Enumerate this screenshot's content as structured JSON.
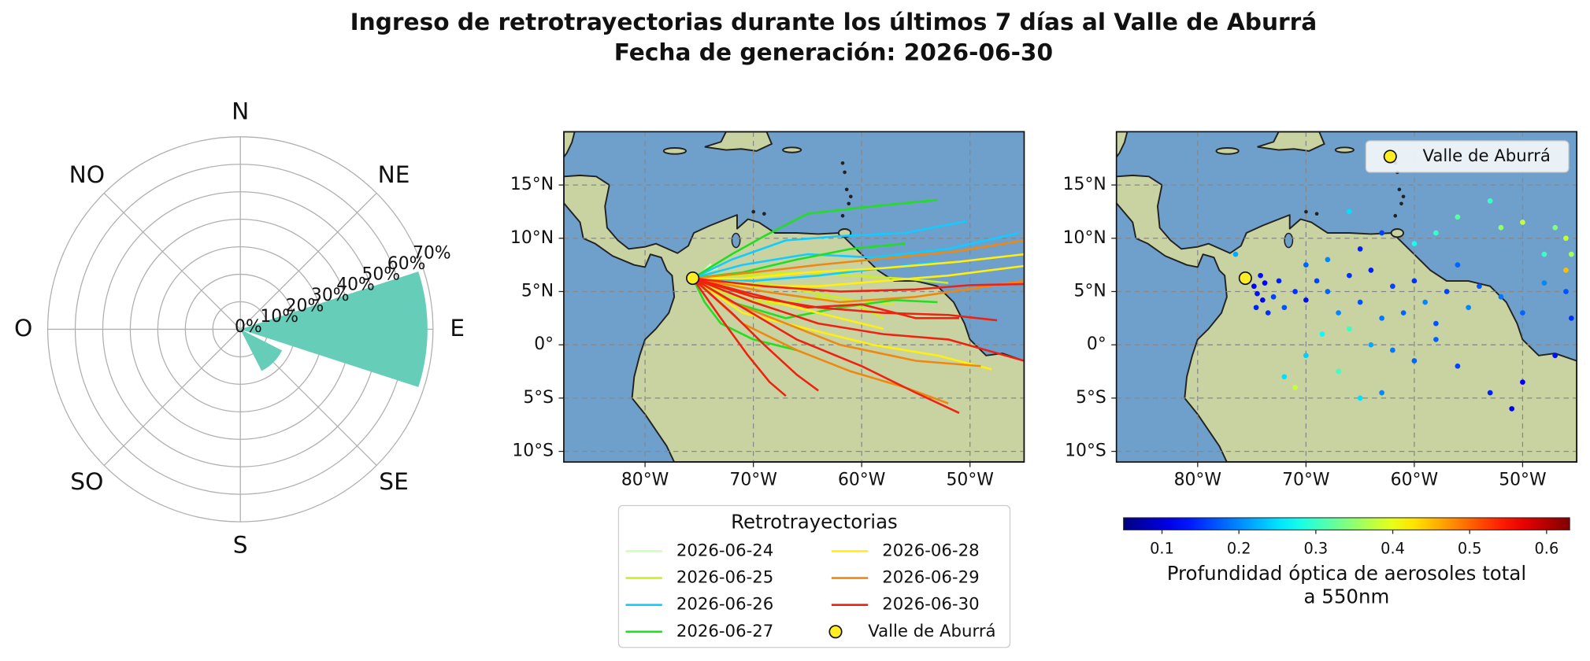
{
  "title": "Ingreso de retrotrayectorias durante los últimos 7 días al Valle de Aburrá",
  "subtitle": "Fecha de generación: 2026-06-30",
  "chart_data": [
    {
      "type": "polar_bar",
      "categories": [
        "N",
        "NE",
        "E",
        "SE",
        "S",
        "SO",
        "O",
        "NO"
      ],
      "values": [
        0,
        0,
        68,
        17,
        0,
        0,
        0,
        0
      ],
      "color": "#66cdb9",
      "bar_width": 0.8,
      "grid": true,
      "ylim": [
        0,
        70
      ],
      "yticks": [
        {
          "value": 0,
          "label": "0%"
        },
        {
          "value": 10,
          "label": "10%"
        },
        {
          "value": 20,
          "label": "20%"
        },
        {
          "value": 30,
          "label": "30%"
        },
        {
          "value": 40,
          "label": "40%"
        },
        {
          "value": 50,
          "label": "50%"
        },
        {
          "value": 60,
          "label": "60%"
        },
        {
          "value": 70,
          "label": "70%"
        }
      ]
    },
    {
      "type": "trajectory_map",
      "xlim": [
        -87.5,
        -45
      ],
      "ylim": [
        -11,
        20
      ],
      "grid": true,
      "xticks": [
        {
          "value": -80,
          "label": "80°W"
        },
        {
          "value": -70,
          "label": "70°W"
        },
        {
          "value": -60,
          "label": "60°W"
        },
        {
          "value": -50,
          "label": "50°W"
        }
      ],
      "yticks": [
        {
          "value": -10,
          "label": "10°S"
        },
        {
          "value": -5,
          "label": "5°S"
        },
        {
          "value": 0,
          "label": "0°"
        },
        {
          "value": 5,
          "label": "5°N"
        },
        {
          "value": 10,
          "label": "10°N"
        },
        {
          "value": 15,
          "label": "15°N"
        }
      ],
      "legend_title": "Retrotrayectorias",
      "legend": "lower center",
      "site": {
        "name": "Valle de Aburrá",
        "x": -75.6,
        "y": 6.25,
        "color": "#ffee22"
      },
      "series": [
        {
          "name": "2026-06-24",
          "color": "#ccffbb",
          "lines": [
            {
              "x": [
                -75.6,
                -74.8,
                -74.0,
                -73.3
              ],
              "y": [
                6.25,
                6.7,
                7.0,
                7.2
              ]
            },
            {
              "x": [
                -75.6,
                -74.6,
                -73.9
              ],
              "y": [
                6.25,
                6.9,
                7.6
              ]
            }
          ]
        },
        {
          "name": "2026-06-25",
          "color": "#ccee22",
          "lines": [
            {
              "x": [
                -75.6,
                -73,
                -69,
                -65,
                -61,
                -57
              ],
              "y": [
                6.25,
                5.5,
                5.8,
                5,
                4.2,
                3.8
              ]
            },
            {
              "x": [
                -75.6,
                -72,
                -68,
                -64,
                -60,
                -58
              ],
              "y": [
                6.25,
                4.5,
                3.8,
                4.5,
                3.5,
                2.5
              ]
            },
            {
              "x": [
                -75.6,
                -71,
                -66,
                -61,
                -56,
                -52
              ],
              "y": [
                6.25,
                6.5,
                6.8,
                6.5,
                6.2,
                5.8
              ]
            }
          ]
        },
        {
          "name": "2026-06-26",
          "color": "#11ccff",
          "lines": [
            {
              "x": [
                -75.6,
                -72,
                -67,
                -62,
                -56,
                -50.3
              ],
              "y": [
                6.25,
                8,
                9.8,
                10.2,
                10.5,
                11.6
              ]
            },
            {
              "x": [
                -75.6,
                -71,
                -65,
                -59,
                -52,
                -45.5
              ],
              "y": [
                6.25,
                7.5,
                8.5,
                8.2,
                9,
                10.5
              ]
            },
            {
              "x": [
                -75.6,
                -70,
                -64,
                -58,
                -53
              ],
              "y": [
                6.25,
                6,
                6.5,
                7.2,
                7.8
              ]
            }
          ]
        },
        {
          "name": "2026-06-27",
          "color": "#22dd22",
          "lines": [
            {
              "x": [
                -75.6,
                -72,
                -69,
                -65,
                -59,
                -53
              ],
              "y": [
                6.25,
                8.5,
                10.2,
                12.3,
                13,
                13.6
              ]
            },
            {
              "x": [
                -75.6,
                -71,
                -66,
                -61,
                -56
              ],
              "y": [
                6.25,
                6.8,
                8,
                9,
                9.5
              ]
            },
            {
              "x": [
                -75.6,
                -72,
                -67,
                -62,
                -57,
                -53
              ],
              "y": [
                6.25,
                4,
                2.5,
                3.5,
                4.2,
                4
              ]
            },
            {
              "x": [
                -75.6,
                -74.5,
                -73,
                -70,
                -66
              ],
              "y": [
                6.25,
                4,
                2,
                0.5,
                -0.5
              ]
            }
          ]
        },
        {
          "name": "2026-06-28",
          "color": "#ffee11",
          "lines": [
            {
              "x": [
                -75.6,
                -71,
                -65,
                -58,
                -51,
                -45
              ],
              "y": [
                6.25,
                6.2,
                6.8,
                7.2,
                7.8,
                8.5
              ]
            },
            {
              "x": [
                -75.6,
                -70,
                -64,
                -58,
                -52,
                -45
              ],
              "y": [
                6.25,
                5.5,
                5.5,
                6,
                6.5,
                7.4
              ]
            },
            {
              "x": [
                -75.6,
                -71,
                -65,
                -59,
                -53,
                -48
              ],
              "y": [
                6.25,
                3,
                1.5,
                0,
                -1,
                -2.3
              ]
            },
            {
              "x": [
                -75.6,
                -70,
                -64,
                -58
              ],
              "y": [
                6.25,
                4.5,
                3,
                1.5
              ]
            }
          ]
        },
        {
          "name": "2026-06-29",
          "color": "#ee8811",
          "lines": [
            {
              "x": [
                -75.6,
                -70,
                -64,
                -57,
                -51,
                -45
              ],
              "y": [
                6.25,
                6.8,
                7.5,
                8.2,
                8.8,
                9.8
              ]
            },
            {
              "x": [
                -75.6,
                -71,
                -66,
                -61,
                -56,
                -52
              ],
              "y": [
                6.25,
                2,
                -0.5,
                -2.5,
                -4,
                -5.5
              ]
            },
            {
              "x": [
                -75.6,
                -72,
                -67,
                -62,
                -55,
                -49
              ],
              "y": [
                6.25,
                4,
                2,
                0,
                -1.5,
                -2
              ]
            },
            {
              "x": [
                -75.6,
                -69,
                -62,
                -55,
                -45
              ],
              "y": [
                6.25,
                5,
                4,
                4.5,
                6
              ]
            }
          ]
        },
        {
          "name": "2026-06-30",
          "color": "#ee2211",
          "lines": [
            {
              "x": [
                -75.6,
                -69,
                -62,
                -55,
                -50,
                -45
              ],
              "y": [
                6.25,
                5.5,
                5,
                5.2,
                5.6,
                5.7
              ]
            },
            {
              "x": [
                -75.6,
                -70,
                -64,
                -58,
                -52,
                -45
              ],
              "y": [
                6.25,
                4,
                2,
                1,
                0.5,
                -1.5
              ]
            },
            {
              "x": [
                -75.6,
                -71,
                -66,
                -60,
                -55,
                -51
              ],
              "y": [
                6.25,
                3.5,
                0.5,
                -2,
                -4.5,
                -6.4
              ]
            },
            {
              "x": [
                -75.6,
                -72,
                -69,
                -66,
                -64
              ],
              "y": [
                6.25,
                3,
                0,
                -2.8,
                -4.3
              ]
            },
            {
              "x": [
                -75.6,
                -73,
                -70.5,
                -68.5,
                -67
              ],
              "y": [
                6.25,
                2.5,
                -1,
                -3.5,
                -4.8
              ]
            },
            {
              "x": [
                -75.6,
                -70,
                -64,
                -58,
                -52,
                -47.5
              ],
              "y": [
                6.25,
                4.5,
                3.5,
                3,
                2.8,
                2.3
              ]
            },
            {
              "x": [
                -75.6,
                -71,
                -65,
                -60,
                -55,
                -51
              ],
              "y": [
                6.25,
                5,
                3.5,
                3.8,
                2.5,
                2.5
              ]
            }
          ]
        }
      ]
    },
    {
      "type": "aod_map",
      "xlim": [
        -87.5,
        -45
      ],
      "ylim": [
        -11,
        20
      ],
      "grid": true,
      "xticks": [
        {
          "value": -80,
          "label": "80°W"
        },
        {
          "value": -70,
          "label": "70°W"
        },
        {
          "value": -60,
          "label": "60°W"
        },
        {
          "value": -50,
          "label": "50°W"
        }
      ],
      "yticks": [
        {
          "value": -10,
          "label": "10°S"
        },
        {
          "value": -5,
          "label": "5°S"
        },
        {
          "value": 0,
          "label": "0°"
        },
        {
          "value": 5,
          "label": "5°N"
        },
        {
          "value": 10,
          "label": "10°N"
        },
        {
          "value": 15,
          "label": "15°N"
        }
      ],
      "legend": "upper right",
      "site": {
        "name": "Valle de Aburrá",
        "x": -75.6,
        "y": 6.25,
        "color": "#ffee22"
      },
      "x": [
        -74.8,
        -74.5,
        -74,
        -74.6,
        -73.8,
        -73.5,
        -74.2,
        -73,
        -72.5,
        -72,
        -71,
        -70,
        -69,
        -68,
        -67,
        -66,
        -65,
        -64,
        -63,
        -62,
        -61,
        -60,
        -59,
        -58,
        -57,
        -56,
        -55,
        -54,
        -52,
        -50,
        -48,
        -46,
        -45.5,
        -47,
        -50,
        -51,
        -53,
        -56,
        -60,
        -63,
        -65,
        -67,
        -70,
        -68.5,
        -66,
        -64,
        -62,
        -58,
        -72,
        -71,
        -60,
        -58,
        -56,
        -53,
        -52,
        -50,
        -47,
        -46,
        -48,
        -46,
        -45.5,
        -63,
        -65,
        -68,
        -70,
        -76.5,
        -66
      ],
      "y": [
        5.5,
        4.8,
        4.2,
        3.5,
        5.8,
        3,
        6.5,
        4.5,
        6,
        3.5,
        5,
        4.2,
        6,
        5,
        3,
        6.5,
        4,
        7,
        2.5,
        5.5,
        3,
        6,
        4,
        2,
        5,
        7.5,
        3.5,
        5.5,
        4.5,
        3,
        5.8,
        5,
        2.5,
        -1,
        -3.5,
        -6,
        -4.5,
        -2,
        -1.5,
        -4.5,
        -5,
        -2.5,
        -1,
        1,
        1.5,
        0,
        -0.5,
        0.5,
        -3,
        -4,
        9.5,
        10.5,
        12,
        13.5,
        11,
        11.5,
        11,
        10,
        8.5,
        7,
        8.5,
        10.5,
        9,
        8,
        7.5,
        8.5,
        12.5
      ],
      "values": [
        0.12,
        0.13,
        0.11,
        0.14,
        0.12,
        0.15,
        0.13,
        0.16,
        0.14,
        0.17,
        0.15,
        0.13,
        0.16,
        0.18,
        0.2,
        0.15,
        0.17,
        0.14,
        0.19,
        0.16,
        0.18,
        0.15,
        0.2,
        0.17,
        0.16,
        0.18,
        0.2,
        0.17,
        0.19,
        0.18,
        0.2,
        0.17,
        0.15,
        0.13,
        0.12,
        0.11,
        0.14,
        0.16,
        0.18,
        0.2,
        0.25,
        0.3,
        0.24,
        0.27,
        0.3,
        0.22,
        0.19,
        0.18,
        0.25,
        0.38,
        0.28,
        0.3,
        0.32,
        0.3,
        0.35,
        0.38,
        0.34,
        0.38,
        0.3,
        0.45,
        0.36,
        0.16,
        0.14,
        0.2,
        0.18,
        0.22,
        0.25
      ],
      "colorbar": {
        "label": [
          "Profundidad óptica de aerosoles total",
          "a 550nm"
        ],
        "colormap": "jet",
        "clim": [
          0.05,
          0.63
        ],
        "ticks": [
          0.1,
          0.2,
          0.3,
          0.4,
          0.5,
          0.6
        ]
      }
    }
  ]
}
